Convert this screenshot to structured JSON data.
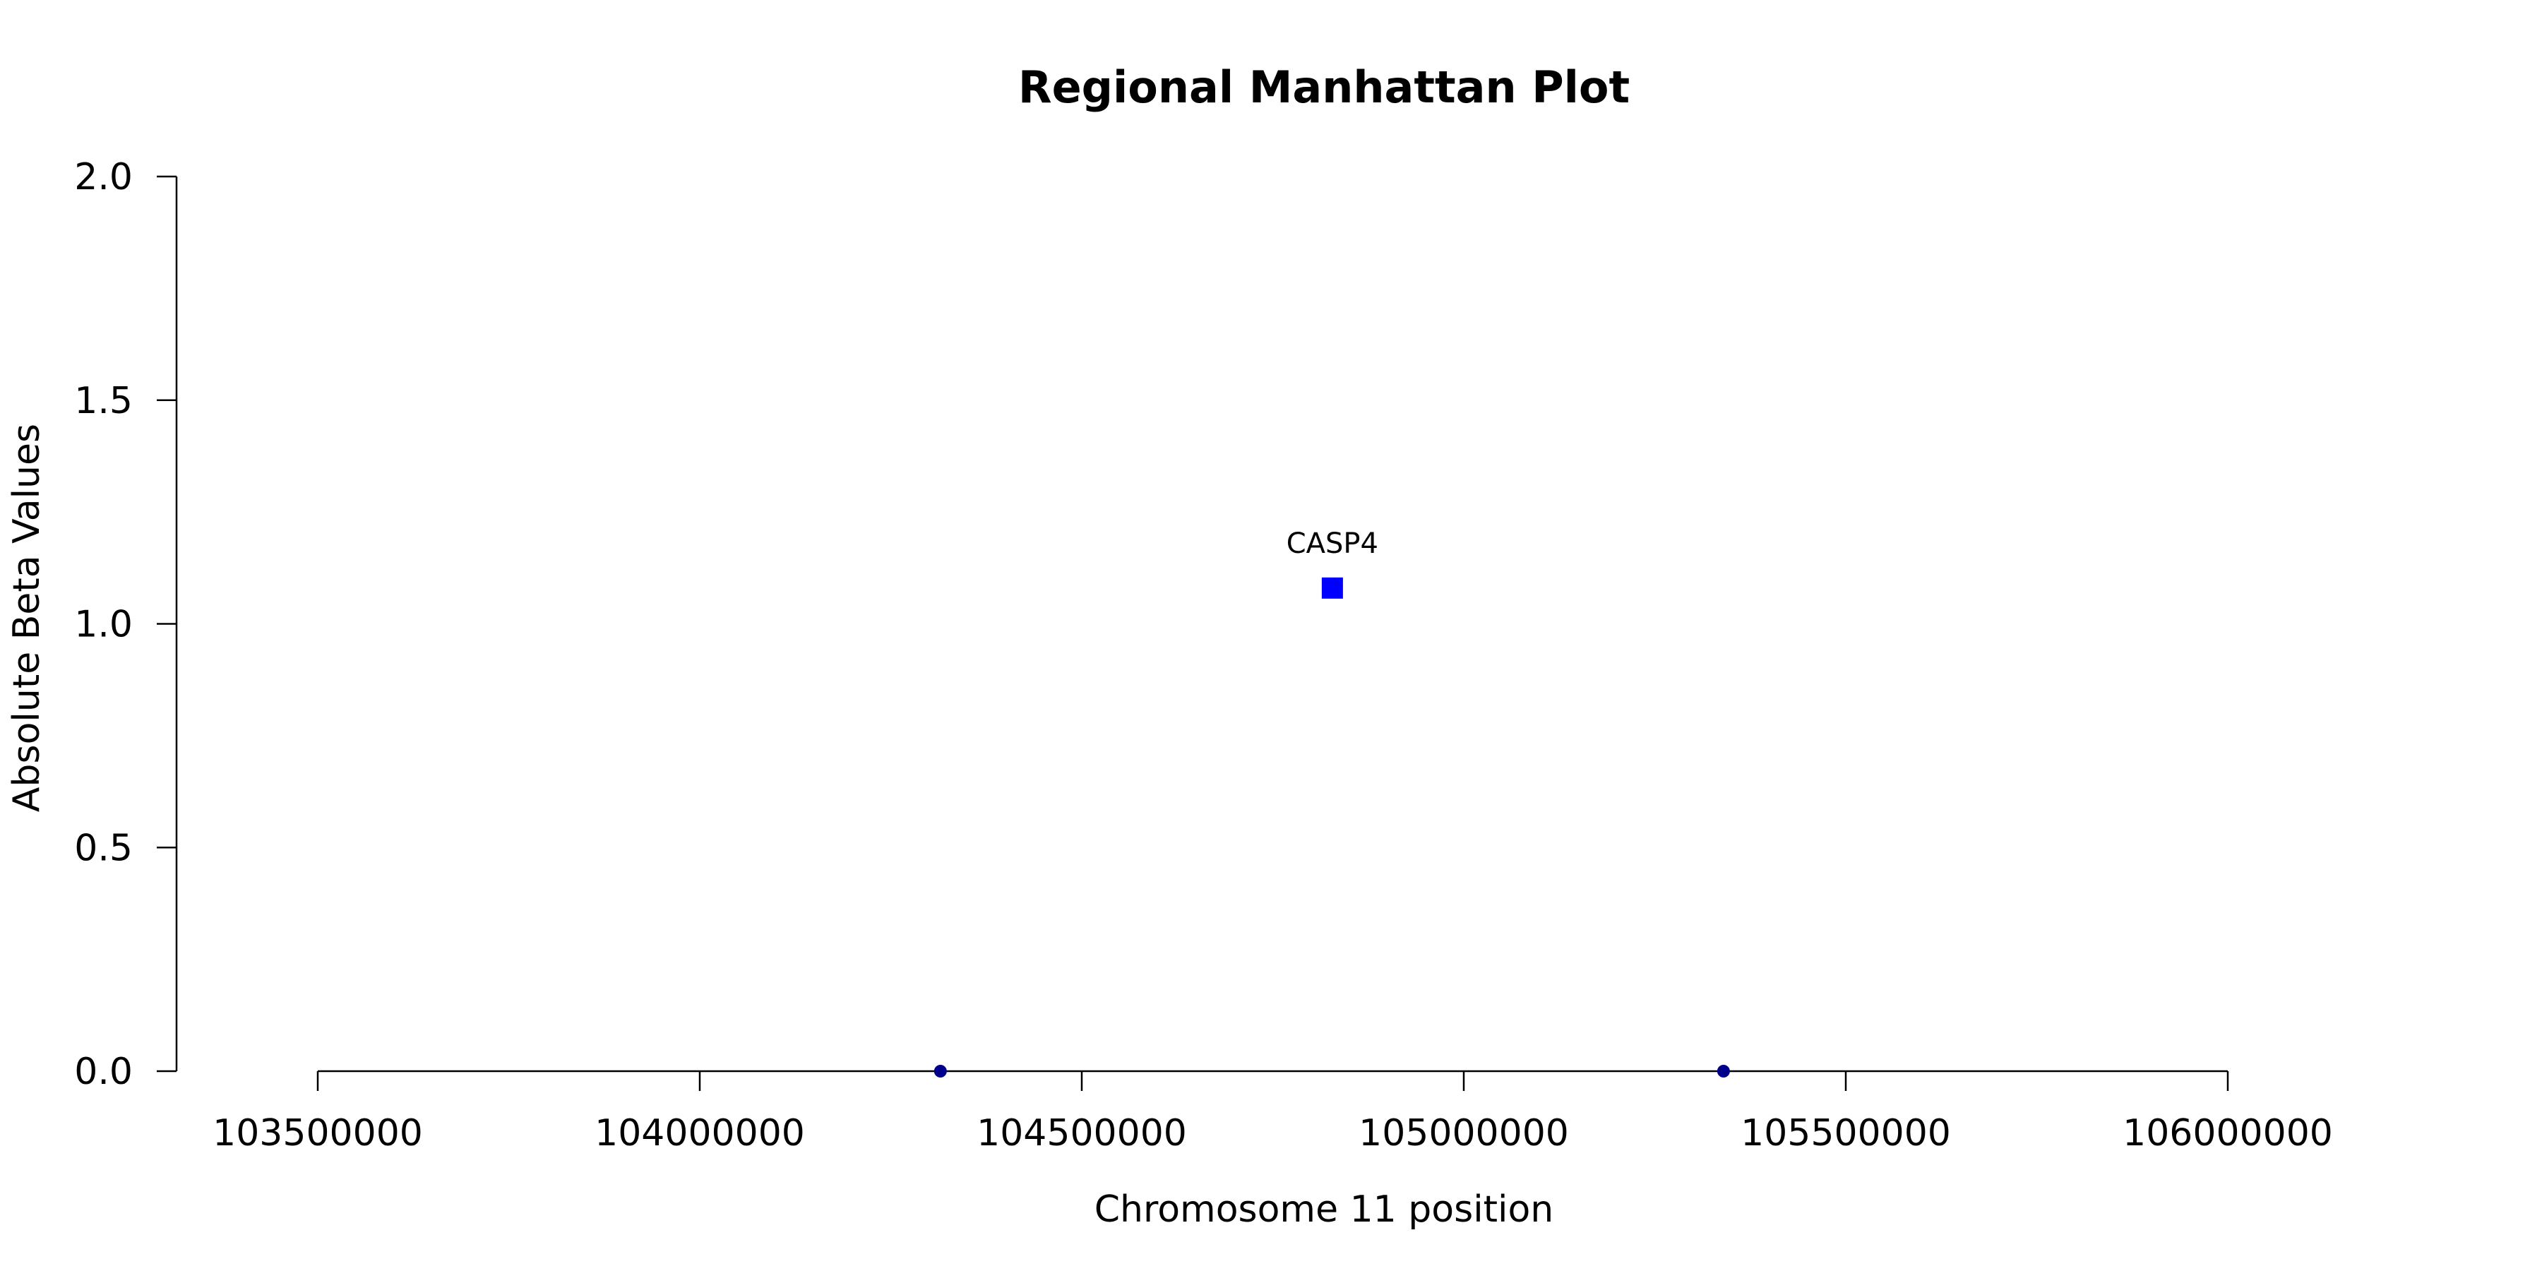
{
  "chart_data": {
    "type": "scatter",
    "title": "Regional Manhattan Plot",
    "xlabel": "Chromosome 11 position",
    "ylabel": "Absolute Beta Values",
    "xlim": [
      103500000,
      106000000
    ],
    "ylim": [
      0,
      2
    ],
    "x_ticks": [
      "103500000",
      "104000000",
      "104500000",
      "105000000",
      "105500000",
      "106000000"
    ],
    "y_ticks": [
      "0.0",
      "0.5",
      "1.0",
      "1.5",
      "2.0"
    ],
    "grid": false,
    "points": [
      {
        "x": 104315000,
        "y": 0.0,
        "marker": "circle",
        "color": "#00008b"
      },
      {
        "x": 104828000,
        "y": 1.08,
        "marker": "square",
        "color": "#0000ff",
        "label": "CASP4"
      },
      {
        "x": 105340000,
        "y": 0.0,
        "marker": "circle",
        "color": "#00008b"
      }
    ]
  }
}
